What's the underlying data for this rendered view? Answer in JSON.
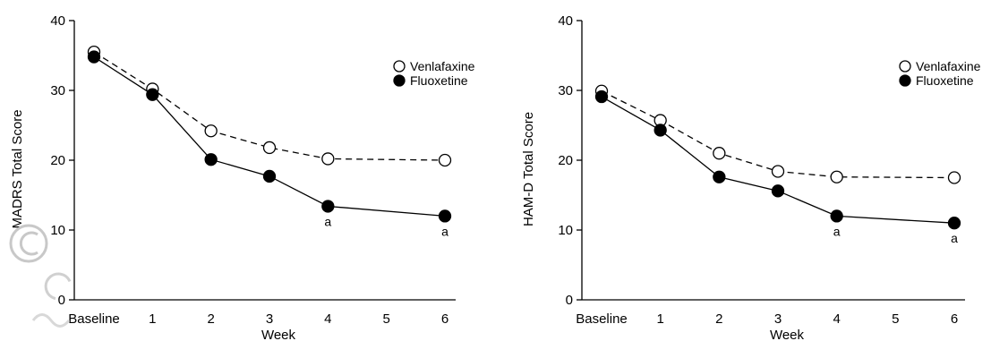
{
  "chart_data": [
    {
      "type": "line",
      "xlabel": "Week",
      "ylabel": "MADRS Total Score",
      "categories": [
        "Baseline",
        "1",
        "2",
        "3",
        "4",
        "5",
        "6"
      ],
      "ylim": [
        0,
        40
      ],
      "yticks": [
        "0",
        "10",
        "20",
        "30",
        "40"
      ],
      "grid": false,
      "legend_position": "top-right",
      "series": [
        {
          "name": "Venlafaxine",
          "marker": "open-circle",
          "line": "dashed",
          "color": "#000000",
          "x": [
            "Baseline",
            "1",
            "2",
            "3",
            "4",
            "6"
          ],
          "values": [
            35.5,
            30.2,
            24.2,
            21.8,
            20.2,
            20.0
          ]
        },
        {
          "name": "Fluoxetine",
          "marker": "filled-circle",
          "line": "solid",
          "color": "#000000",
          "x": [
            "Baseline",
            "1",
            "2",
            "3",
            "4",
            "6"
          ],
          "values": [
            34.8,
            29.4,
            20.1,
            17.7,
            13.4,
            12.0
          ]
        }
      ],
      "annotations": [
        {
          "x": "4",
          "text": "a"
        },
        {
          "x": "6",
          "text": "a"
        }
      ]
    },
    {
      "type": "line",
      "xlabel": "Week",
      "ylabel": "HAM-D Total Score",
      "categories": [
        "Baseline",
        "1",
        "2",
        "3",
        "4",
        "5",
        "6"
      ],
      "ylim": [
        0,
        40
      ],
      "yticks": [
        "0",
        "10",
        "20",
        "30",
        "40"
      ],
      "grid": false,
      "legend_position": "top-right",
      "series": [
        {
          "name": "Venlafaxine",
          "marker": "open-circle",
          "line": "dashed",
          "color": "#000000",
          "x": [
            "Baseline",
            "1",
            "2",
            "3",
            "4",
            "6"
          ],
          "values": [
            29.9,
            25.7,
            21.0,
            18.4,
            17.6,
            17.5
          ]
        },
        {
          "name": "Fluoxetine",
          "marker": "filled-circle",
          "line": "solid",
          "color": "#000000",
          "x": [
            "Baseline",
            "1",
            "2",
            "3",
            "4",
            "6"
          ],
          "values": [
            29.1,
            24.3,
            17.6,
            15.6,
            12.0,
            11.0
          ]
        }
      ],
      "annotations": [
        {
          "x": "4",
          "text": "a"
        },
        {
          "x": "6",
          "text": "a"
        }
      ]
    }
  ]
}
